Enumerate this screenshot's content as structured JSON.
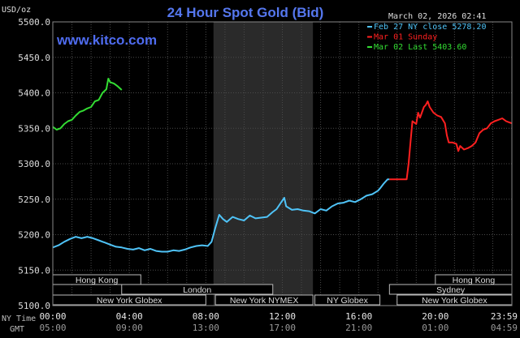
{
  "chart_data": {
    "type": "line",
    "title": "24 Hour Spot Gold (Bid)",
    "ylabel": "USD/oz",
    "watermark": "www.kitco.com",
    "date_label": "March 02, 2026 02:41",
    "ylim": [
      5100,
      5500
    ],
    "yticks": [
      5100,
      5150,
      5200,
      5250,
      5300,
      5350,
      5400,
      5450,
      5500
    ],
    "ytick_labels": [
      "5100.0",
      "5150.0",
      "5200.0",
      "5250.0",
      "5300.0",
      "5350.0",
      "5400.0",
      "5450.0",
      "5500.0"
    ],
    "xlim": [
      0,
      24
    ],
    "xticks": [
      0,
      4,
      8,
      12,
      16,
      20,
      24
    ],
    "xtick_labels_ny": [
      "00:00",
      "04:00",
      "08:00",
      "12:00",
      "16:00",
      "20:00",
      "23:59"
    ],
    "xtick_labels_gmt": [
      "05:00",
      "09:00",
      "13:00",
      "17:00",
      "21:00",
      "01:00",
      "04:59"
    ],
    "row_label_ny": "NY Time",
    "row_label_gmt": "GMT",
    "shaded_region": [
      8.4,
      13.6
    ],
    "legend": [
      {
        "label": "Feb 27 NY close 5278.20",
        "color": "#4fc3f7"
      },
      {
        "label": "Mar 01 Sunday",
        "color": "#ff2020"
      },
      {
        "label": "Mar 02 Last 5403.60",
        "color": "#33dd33"
      }
    ],
    "sessions": [
      {
        "name": "Hong Kong",
        "start": 0,
        "end": 4.6,
        "row": 0
      },
      {
        "name": "Hong Kong",
        "start": 20.0,
        "end": 24,
        "row": 0
      },
      {
        "name": "London",
        "start": 3.6,
        "end": 11.5,
        "row": 1
      },
      {
        "name": "Sydney",
        "start": 17.6,
        "end": 24,
        "row": 1
      },
      {
        "name": "New York Globex",
        "start": 0,
        "end": 8.0,
        "row": 2
      },
      {
        "name": "New York NYMEX",
        "start": 8.5,
        "end": 13.6,
        "row": 2
      },
      {
        "name": "NY Globex",
        "start": 13.7,
        "end": 17.1,
        "row": 2
      },
      {
        "name": "New York Globex",
        "start": 18.0,
        "end": 24,
        "row": 2
      }
    ],
    "series": [
      {
        "name": "Feb 27 NY close 5278.20",
        "color": "#4fc3f7",
        "points": [
          [
            0,
            5182
          ],
          [
            0.3,
            5185
          ],
          [
            0.6,
            5190
          ],
          [
            0.9,
            5194
          ],
          [
            1.2,
            5197
          ],
          [
            1.5,
            5195
          ],
          [
            1.8,
            5197
          ],
          [
            2.1,
            5195
          ],
          [
            2.4,
            5192
          ],
          [
            2.7,
            5189
          ],
          [
            3.0,
            5186
          ],
          [
            3.3,
            5183
          ],
          [
            3.6,
            5182
          ],
          [
            3.9,
            5180
          ],
          [
            4.2,
            5179
          ],
          [
            4.5,
            5181
          ],
          [
            4.8,
            5178
          ],
          [
            5.1,
            5180
          ],
          [
            5.4,
            5177
          ],
          [
            5.7,
            5176
          ],
          [
            6.0,
            5176
          ],
          [
            6.3,
            5178
          ],
          [
            6.6,
            5177
          ],
          [
            6.9,
            5179
          ],
          [
            7.2,
            5182
          ],
          [
            7.5,
            5184
          ],
          [
            7.8,
            5185
          ],
          [
            8.1,
            5184
          ],
          [
            8.3,
            5190
          ],
          [
            8.5,
            5210
          ],
          [
            8.7,
            5228
          ],
          [
            8.9,
            5222
          ],
          [
            9.1,
            5218
          ],
          [
            9.4,
            5225
          ],
          [
            9.7,
            5222
          ],
          [
            10.0,
            5220
          ],
          [
            10.3,
            5227
          ],
          [
            10.6,
            5223
          ],
          [
            10.9,
            5224
          ],
          [
            11.2,
            5225
          ],
          [
            11.5,
            5232
          ],
          [
            11.7,
            5236
          ],
          [
            11.9,
            5244
          ],
          [
            12.1,
            5252
          ],
          [
            12.2,
            5240
          ],
          [
            12.5,
            5235
          ],
          [
            12.8,
            5236
          ],
          [
            13.1,
            5234
          ],
          [
            13.4,
            5233
          ],
          [
            13.7,
            5230
          ],
          [
            14.0,
            5236
          ],
          [
            14.3,
            5234
          ],
          [
            14.6,
            5240
          ],
          [
            14.9,
            5244
          ],
          [
            15.2,
            5245
          ],
          [
            15.5,
            5248
          ],
          [
            15.8,
            5246
          ],
          [
            16.1,
            5250
          ],
          [
            16.4,
            5255
          ],
          [
            16.7,
            5257
          ],
          [
            17.0,
            5262
          ],
          [
            17.1,
            5265
          ],
          [
            17.3,
            5272
          ],
          [
            17.5,
            5278
          ],
          [
            17.6,
            5278
          ]
        ]
      },
      {
        "name": "Mar 01 Sunday",
        "color": "#ff2020",
        "points": [
          [
            17.6,
            5278
          ],
          [
            18.5,
            5278
          ],
          [
            18.6,
            5300
          ],
          [
            18.7,
            5330
          ],
          [
            18.8,
            5360
          ],
          [
            19.0,
            5356
          ],
          [
            19.1,
            5372
          ],
          [
            19.2,
            5365
          ],
          [
            19.4,
            5380
          ],
          [
            19.5,
            5383
          ],
          [
            19.6,
            5388
          ],
          [
            19.7,
            5380
          ],
          [
            19.9,
            5372
          ],
          [
            20.1,
            5368
          ],
          [
            20.3,
            5366
          ],
          [
            20.5,
            5357
          ],
          [
            20.6,
            5340
          ],
          [
            20.7,
            5330
          ],
          [
            20.9,
            5330
          ],
          [
            21.1,
            5328
          ],
          [
            21.2,
            5318
          ],
          [
            21.3,
            5325
          ],
          [
            21.5,
            5320
          ],
          [
            21.7,
            5322
          ],
          [
            21.9,
            5325
          ],
          [
            22.1,
            5330
          ],
          [
            22.3,
            5343
          ],
          [
            22.5,
            5348
          ],
          [
            22.7,
            5350
          ],
          [
            22.9,
            5357
          ],
          [
            23.1,
            5360
          ],
          [
            23.3,
            5362
          ],
          [
            23.5,
            5364
          ],
          [
            23.7,
            5360
          ],
          [
            23.9,
            5358
          ],
          [
            24.0,
            5357
          ]
        ]
      },
      {
        "name": "Mar 02 Last 5403.60",
        "color": "#33dd33",
        "points": [
          [
            0,
            5352
          ],
          [
            0.2,
            5348
          ],
          [
            0.4,
            5350
          ],
          [
            0.6,
            5356
          ],
          [
            0.8,
            5360
          ],
          [
            1.0,
            5362
          ],
          [
            1.2,
            5368
          ],
          [
            1.4,
            5373
          ],
          [
            1.6,
            5375
          ],
          [
            1.8,
            5378
          ],
          [
            2.0,
            5380
          ],
          [
            2.2,
            5388
          ],
          [
            2.4,
            5390
          ],
          [
            2.6,
            5400
          ],
          [
            2.8,
            5405
          ],
          [
            2.9,
            5420
          ],
          [
            3.0,
            5415
          ],
          [
            3.2,
            5413
          ],
          [
            3.4,
            5409
          ],
          [
            3.6,
            5404
          ]
        ]
      }
    ]
  }
}
